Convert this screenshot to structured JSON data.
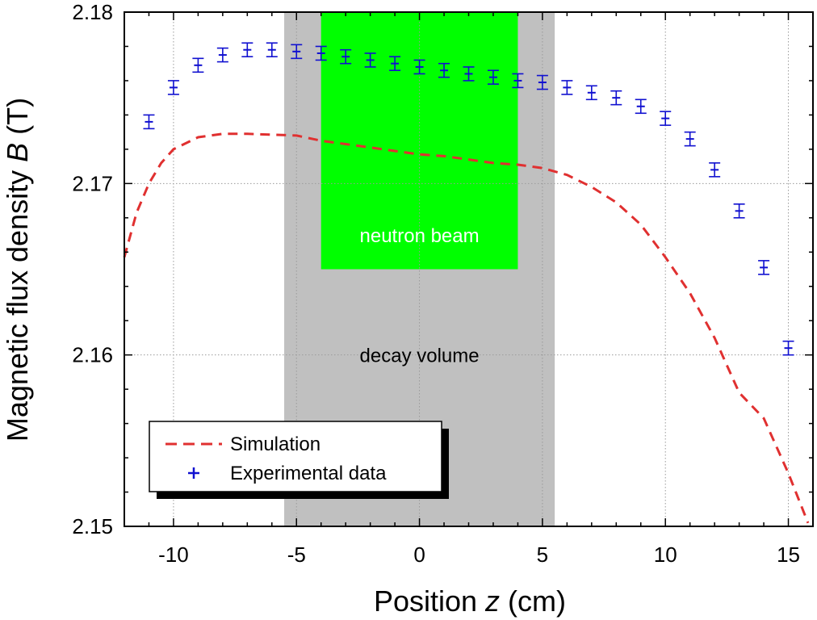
{
  "chart_data": {
    "type": "scatter",
    "xlabel_prefix": "Position ",
    "xlabel_var": "z",
    "xlabel_suffix": " (cm)",
    "ylabel_prefix": "Magnetic flux density ",
    "ylabel_var": "B",
    "ylabel_suffix": " (T)",
    "xlim": [
      -12,
      16
    ],
    "ylim": [
      2.15,
      2.18
    ],
    "x_ticks": [
      -10,
      -5,
      0,
      5,
      10,
      15
    ],
    "x_tick_labels": [
      "-10",
      "-5",
      "0",
      "5",
      "10",
      "15"
    ],
    "y_ticks": [
      2.15,
      2.16,
      2.17,
      2.18
    ],
    "y_tick_labels": [
      "2.15",
      "2.16",
      "2.17",
      "2.18"
    ],
    "grid": true,
    "regions": [
      {
        "name": "decay-volume",
        "label": "decay volume",
        "x_range": [
          -5.5,
          5.5
        ],
        "y_range": [
          2.15,
          2.18
        ],
        "color": "#c0c0c0",
        "text_color": "#000000",
        "label_y": 2.16
      },
      {
        "name": "neutron-beam",
        "label": "neutron beam",
        "x_range": [
          -4,
          4
        ],
        "y_range": [
          2.165,
          2.18
        ],
        "color": "#00ff00",
        "text_color": "#ffffff",
        "label_y": 2.167
      }
    ],
    "series": [
      {
        "name": "Simulation",
        "style": "dashed-line",
        "color": "#e03030",
        "x": [
          -12,
          -11.5,
          -11,
          -10.5,
          -10,
          -9,
          -8,
          -7,
          -6,
          -5,
          -4,
          -3,
          -2,
          -1,
          0,
          1,
          2,
          3,
          4,
          5,
          6,
          7,
          8,
          9,
          10,
          11,
          12,
          13,
          14,
          15,
          15.8
        ],
        "y": [
          2.1657,
          2.1683,
          2.17,
          2.1712,
          2.172,
          2.1727,
          2.1729,
          2.1729,
          2.17285,
          2.1728,
          2.1725,
          2.1723,
          2.1721,
          2.1719,
          2.1717,
          2.1716,
          2.1714,
          2.1712,
          2.1711,
          2.1709,
          2.1705,
          2.1698,
          2.1689,
          2.1676,
          2.1657,
          2.1636,
          2.161,
          2.1578,
          2.1563,
          2.1531,
          2.1502
        ]
      },
      {
        "name": "Experimental data",
        "style": "points-with-errorbars",
        "color": "#1010d0",
        "x": [
          -11,
          -10,
          -9,
          -8,
          -7,
          -6,
          -5,
          -4,
          -3,
          -2,
          -1,
          0,
          1,
          2,
          3,
          4,
          5,
          6,
          7,
          8,
          9,
          10,
          11,
          12,
          13,
          14,
          15
        ],
        "y": [
          2.1736,
          2.1756,
          2.1769,
          2.1775,
          2.1778,
          2.1778,
          2.1777,
          2.1776,
          2.1774,
          2.1772,
          2.177,
          2.1768,
          2.1766,
          2.1764,
          2.1762,
          2.176,
          2.1759,
          2.1756,
          2.1753,
          2.175,
          2.1745,
          2.1738,
          2.1726,
          2.1708,
          2.1684,
          2.1651,
          2.1604
        ],
        "err": [
          0.0004,
          0.0004,
          0.0004,
          0.0004,
          0.0004,
          0.0004,
          0.0004,
          0.0004,
          0.0004,
          0.0004,
          0.0004,
          0.0004,
          0.0004,
          0.0004,
          0.0004,
          0.0004,
          0.0004,
          0.0004,
          0.0004,
          0.0004,
          0.0004,
          0.0004,
          0.0004,
          0.0004,
          0.0004,
          0.0004,
          0.0004
        ]
      }
    ],
    "legend": {
      "position": "bottom-left",
      "entries": [
        {
          "label": "Simulation",
          "marker": "dashed-line"
        },
        {
          "label": "Experimental data",
          "marker": "plus"
        }
      ]
    }
  }
}
